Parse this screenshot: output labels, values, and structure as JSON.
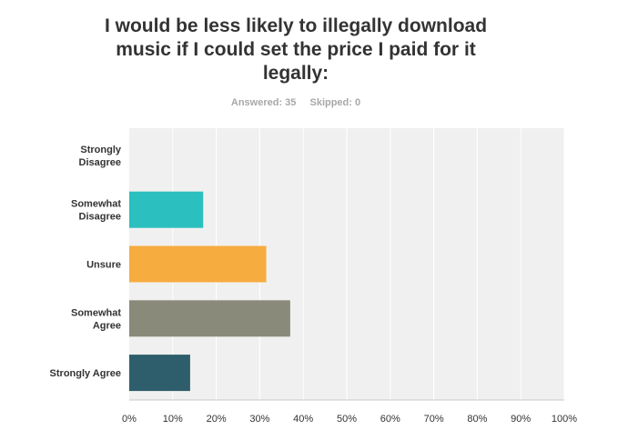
{
  "title": "I would be less likely to illegally download music if I could set the price I paid for it legally:",
  "answered_label": "Answered: 35",
  "skipped_label": "Skipped: 0",
  "chart_data": {
    "type": "bar",
    "orientation": "horizontal",
    "title": "I would be less likely to illegally download music if I could set the price I paid for it legally:",
    "categories": [
      [
        "Strongly",
        "Disagree"
      ],
      [
        "Somewhat",
        "Disagree"
      ],
      [
        "Unsure"
      ],
      [
        "Somewhat",
        "Agree"
      ],
      [
        "Strongly Agree"
      ]
    ],
    "values": [
      0,
      17,
      31.5,
      37,
      14
    ],
    "colors": [
      "#e8e8e8",
      "#2bbfbf",
      "#f7ac40",
      "#8a8a7a",
      "#2e5e6b"
    ],
    "xticks": [
      "0%",
      "10%",
      "20%",
      "30%",
      "40%",
      "50%",
      "60%",
      "70%",
      "80%",
      "90%",
      "100%"
    ],
    "xlim": [
      0,
      100
    ],
    "grid": true,
    "plot_background": "#f0f0f0"
  }
}
